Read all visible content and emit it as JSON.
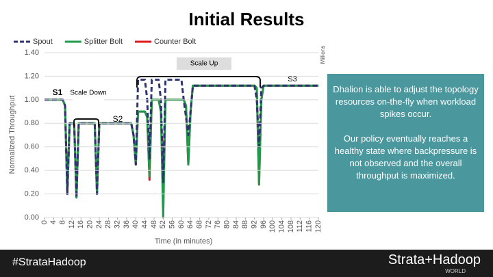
{
  "chart_data": {
    "type": "line",
    "title": "Initial Results",
    "x_label": "Time (in minutes)",
    "y_label": "Normalized Throughput",
    "x": [
      0,
      8,
      9,
      10,
      11,
      13,
      14,
      15,
      16,
      22,
      23,
      24,
      25,
      38,
      39,
      40,
      41,
      44,
      45,
      46,
      47,
      50,
      51,
      52,
      53,
      54,
      60,
      61,
      62,
      63,
      64,
      65,
      92,
      93,
      94,
      95,
      96,
      120
    ],
    "series": [
      {
        "name": "Spout",
        "color": "#2e3470",
        "dashed": true,
        "values": [
          1.0,
          1.0,
          0.95,
          0.2,
          0.8,
          0.8,
          0.17,
          0.8,
          0.8,
          0.8,
          0.2,
          0.8,
          0.8,
          0.8,
          0.7,
          0.45,
          1.17,
          1.17,
          1.0,
          0.5,
          1.17,
          1.17,
          1.0,
          0.3,
          1.17,
          1.17,
          1.17,
          1.0,
          0.85,
          0.7,
          0.9,
          1.12,
          1.12,
          1.0,
          0.6,
          1.1,
          1.12,
          1.12
        ]
      },
      {
        "name": "Splitter Bolt",
        "color": "#1f9a4a",
        "dashed": false,
        "values": [
          1.0,
          1.0,
          0.95,
          0.2,
          0.8,
          0.8,
          0.17,
          0.8,
          0.8,
          0.8,
          0.2,
          0.8,
          0.8,
          0.8,
          0.7,
          0.45,
          0.9,
          0.9,
          0.85,
          0.35,
          1.0,
          1.0,
          0.9,
          0.0,
          1.0,
          1.0,
          1.0,
          1.0,
          0.95,
          0.45,
          0.9,
          1.12,
          1.12,
          1.1,
          0.28,
          1.0,
          1.12,
          1.12
        ]
      },
      {
        "name": "Counter Bolt",
        "color": "#e0191c",
        "dashed": false,
        "values": [
          1.0,
          1.0,
          0.95,
          0.2,
          0.8,
          0.8,
          0.17,
          0.8,
          0.8,
          0.8,
          0.2,
          0.8,
          0.8,
          0.8,
          0.7,
          0.45,
          0.9,
          0.9,
          0.85,
          0.32,
          1.0,
          1.0,
          0.9,
          0.3,
          1.0,
          1.0,
          1.0,
          1.0,
          0.95,
          0.45,
          0.9,
          1.12,
          1.12,
          1.1,
          0.28,
          1.0,
          1.12,
          1.12
        ]
      }
    ],
    "xlim": [
      0,
      120
    ],
    "xticks": [
      0,
      4,
      8,
      12,
      16,
      20,
      24,
      28,
      32,
      36,
      40,
      44,
      48,
      52,
      56,
      60,
      64,
      68,
      72,
      76,
      80,
      84,
      88,
      92,
      96,
      100,
      104,
      108,
      112,
      116,
      120
    ],
    "ylim": [
      0,
      1.4
    ],
    "yticks": [
      {
        "value": 0,
        "label": "0.00"
      },
      {
        "value": 0.2,
        "label": "0.20"
      },
      {
        "value": 0.4,
        "label": "0.40"
      },
      {
        "value": 0.6,
        "label": "0.60"
      },
      {
        "value": 0.8,
        "label": "0.80"
      },
      {
        "value": 1.0,
        "label": "1.00"
      },
      {
        "value": 1.2,
        "label": "1.20"
      },
      {
        "value": 1.4,
        "label": "1.40"
      }
    ],
    "grid": true,
    "annotations": {
      "s1": "S1",
      "scale_down": "Scale Down",
      "s2": "S2",
      "s3": "S3",
      "scale_up": "Scale Up",
      "units": "Millions"
    }
  },
  "sidebar": {
    "paragraphs": [
      "Dhalion is able to adjust the topology resources on-the-fly when workload spikes occur.",
      "Our policy eventually reaches a healthy state where backpressure is not observed and the overall throughput is maximized."
    ]
  },
  "footer": {
    "hashtag": "#StrataHadoop",
    "logo": "Strata+Hadoop",
    "logo_sub": "WORLD"
  }
}
